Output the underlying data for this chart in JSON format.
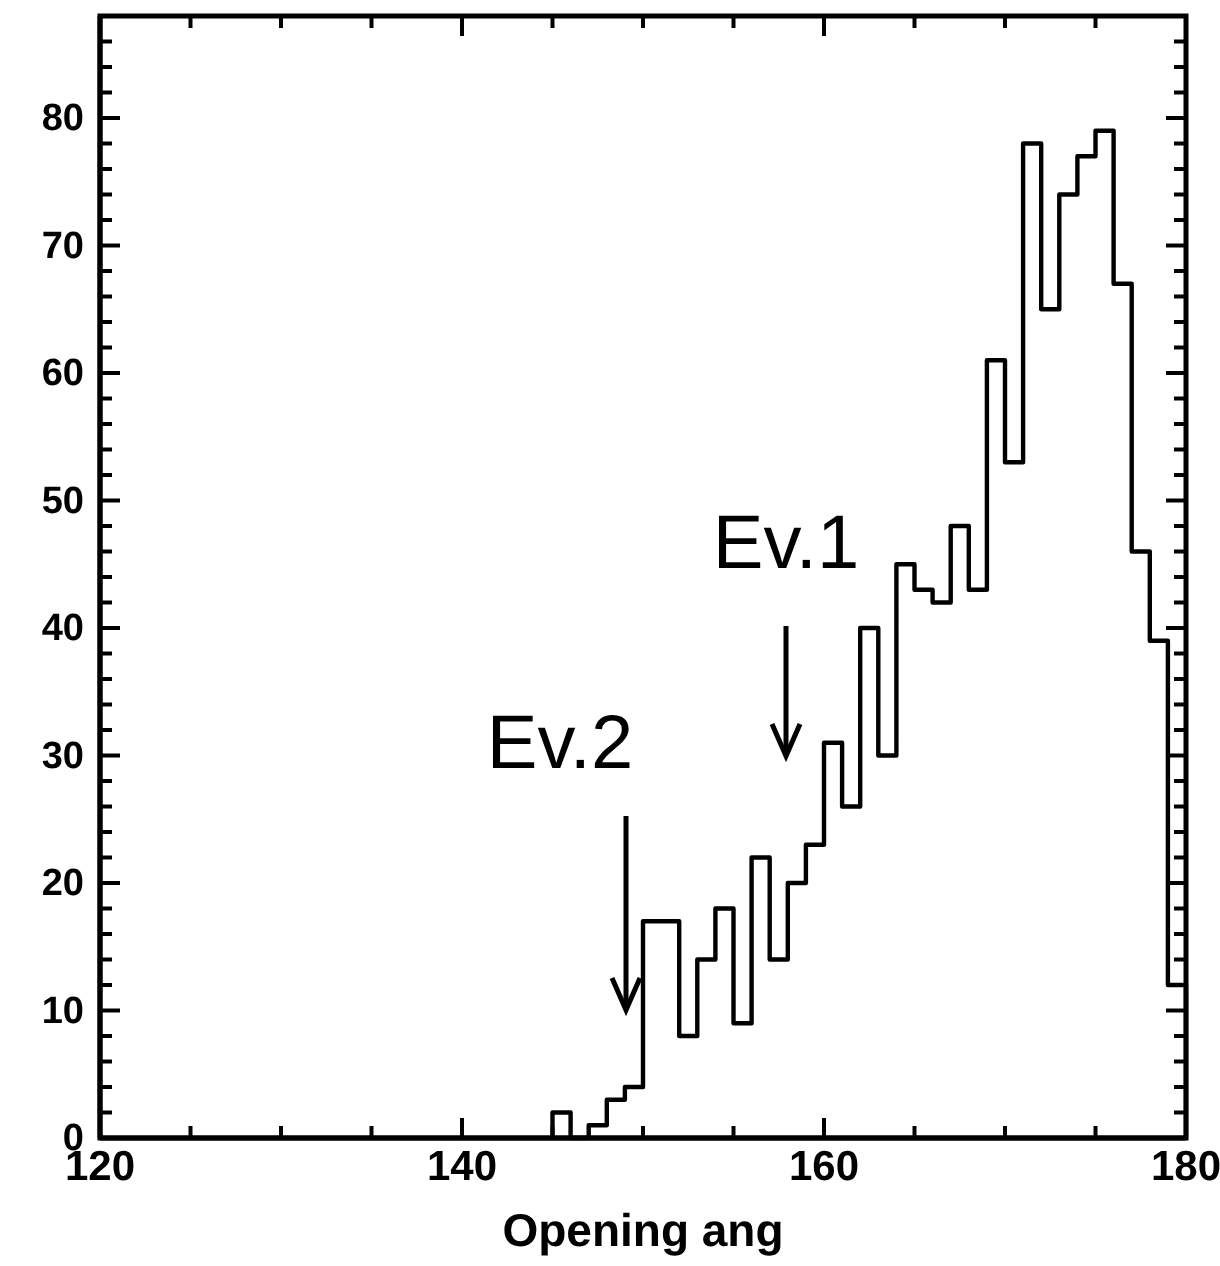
{
  "chart_data": {
    "type": "histogram",
    "xlabel": "Opening ang",
    "bins": [
      145,
      146,
      147,
      148,
      149,
      150,
      151,
      152,
      153,
      154,
      155,
      156,
      157,
      158,
      159,
      160,
      161,
      162,
      163,
      164,
      165,
      166,
      167,
      168,
      169,
      170,
      171,
      172,
      173,
      174,
      175,
      176,
      177,
      178,
      179,
      180
    ],
    "values": [
      2,
      0,
      1,
      3,
      4,
      17,
      17,
      8,
      14,
      18,
      9,
      22,
      14,
      20,
      23,
      31,
      26,
      40,
      30,
      45,
      43,
      42,
      48,
      43,
      61,
      53,
      78,
      65,
      74,
      77,
      79,
      67,
      46,
      39,
      12
    ],
    "color": "#000000",
    "xlim": [
      120,
      180
    ],
    "ylim": [
      0,
      88
    ],
    "xticks": [
      120,
      {
        "value": 125,
        "label": null
      },
      {
        "value": 130,
        "label": null
      },
      {
        "value": 135,
        "label": null
      },
      140,
      {
        "value": 145,
        "label": null
      },
      {
        "value": 150,
        "label": null
      },
      {
        "value": 155,
        "label": null
      },
      160,
      {
        "value": 165,
        "label": null
      },
      {
        "value": 170,
        "label": null
      },
      {
        "value": 175,
        "label": null
      },
      180
    ],
    "yticks": [
      0,
      {
        "value": 2,
        "label": null
      },
      {
        "value": 4,
        "label": null
      },
      {
        "value": 6,
        "label": null
      },
      {
        "value": 8,
        "label": null
      },
      10,
      {
        "value": 12,
        "label": null
      },
      {
        "value": 14,
        "label": null
      },
      {
        "value": 16,
        "label": null
      },
      {
        "value": 18,
        "label": null
      },
      20,
      {
        "value": 22,
        "label": null
      },
      {
        "value": 24,
        "label": null
      },
      {
        "value": 26,
        "label": null
      },
      {
        "value": 28,
        "label": null
      },
      30,
      {
        "value": 32,
        "label": null
      },
      {
        "value": 34,
        "label": null
      },
      {
        "value": 36,
        "label": null
      },
      {
        "value": 38,
        "label": null
      },
      40,
      {
        "value": 42,
        "label": null
      },
      {
        "value": 44,
        "label": null
      },
      {
        "value": 46,
        "label": null
      },
      {
        "value": 48,
        "label": null
      },
      50,
      {
        "value": 52,
        "label": null
      },
      {
        "value": 54,
        "label": null
      },
      {
        "value": 56,
        "label": null
      },
      {
        "value": 58,
        "label": null
      },
      60,
      {
        "value": 62,
        "label": null
      },
      {
        "value": 64,
        "label": null
      },
      {
        "value": 66,
        "label": null
      },
      {
        "value": 68,
        "label": null
      },
      70,
      {
        "value": 72,
        "label": null
      },
      {
        "value": 74,
        "label": null
      },
      {
        "value": 76,
        "label": null
      },
      {
        "value": 78,
        "label": null
      },
      80,
      {
        "value": 82,
        "label": null
      },
      {
        "value": 84,
        "label": null
      },
      {
        "value": 86,
        "label": null
      }
    ],
    "annotations": [
      "Ev.1",
      "Ev.2"
    ],
    "grid": false
  }
}
